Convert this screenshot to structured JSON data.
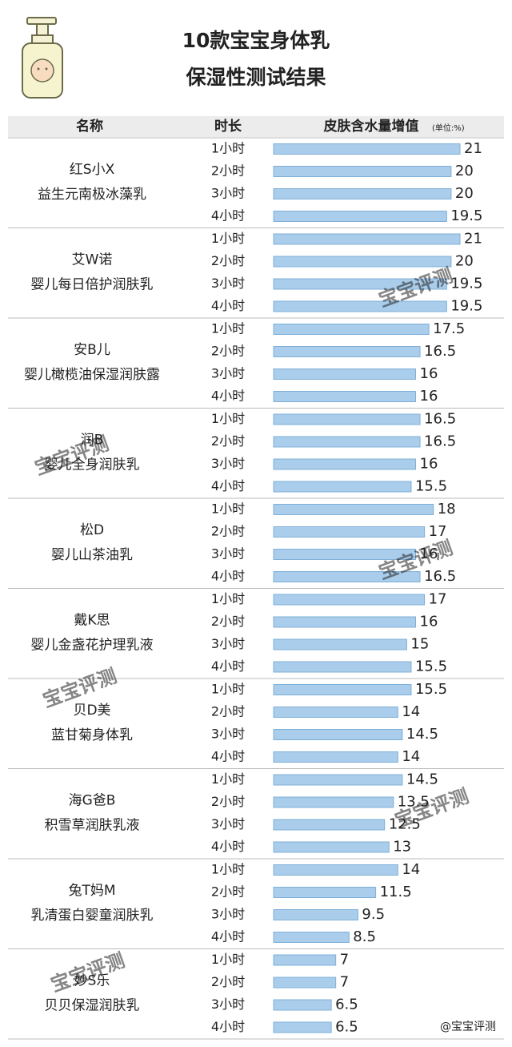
{
  "chart_data": {
    "type": "bar",
    "title_lines": [
      "10款宝宝身体乳",
      "保湿性测试结果"
    ],
    "headers": [
      "名称",
      "时长",
      "皮肤含水量增值"
    ],
    "unit": "(单位:%)",
    "categories": [
      "1小时",
      "2小时",
      "3小时",
      "4小时"
    ],
    "color": "#a9cdea",
    "watermark": "宝宝评测",
    "source": "@宝宝评测",
    "series": [
      {
        "name": "红S小X",
        "product": "益生元南极冰藻乳",
        "values": [
          21,
          20,
          20,
          19.5
        ]
      },
      {
        "name": "艾W诺",
        "product": "婴儿每日倍护润肤乳",
        "values": [
          21,
          20,
          19.5,
          19.5
        ]
      },
      {
        "name": "安B儿",
        "product": "婴儿橄榄油保湿润肤露",
        "values": [
          17.5,
          16.5,
          16,
          16
        ]
      },
      {
        "name": "润B",
        "product": "婴儿全身润肤乳",
        "values": [
          16.5,
          16.5,
          16,
          15.5
        ]
      },
      {
        "name": "松D",
        "product": "婴儿山茶油乳",
        "values": [
          18,
          17,
          16,
          16.5
        ]
      },
      {
        "name": "戴K思",
        "product": "婴儿金盏花护理乳液",
        "values": [
          17,
          16,
          15,
          15.5
        ]
      },
      {
        "name": "贝D美",
        "product": "蓝甘菊身体乳",
        "values": [
          15.5,
          14,
          14.5,
          14
        ]
      },
      {
        "name": "海G爸B",
        "product": "积雪草润肤乳液",
        "values": [
          14.5,
          13.5,
          12.5,
          13
        ]
      },
      {
        "name": "兔T妈M",
        "product": "乳清蛋白婴童润肤乳",
        "values": [
          14,
          11.5,
          9.5,
          8.5
        ]
      },
      {
        "name": "妙S乐",
        "product": "贝贝保湿润肤乳",
        "values": [
          7,
          7,
          6.5,
          6.5
        ]
      }
    ]
  }
}
